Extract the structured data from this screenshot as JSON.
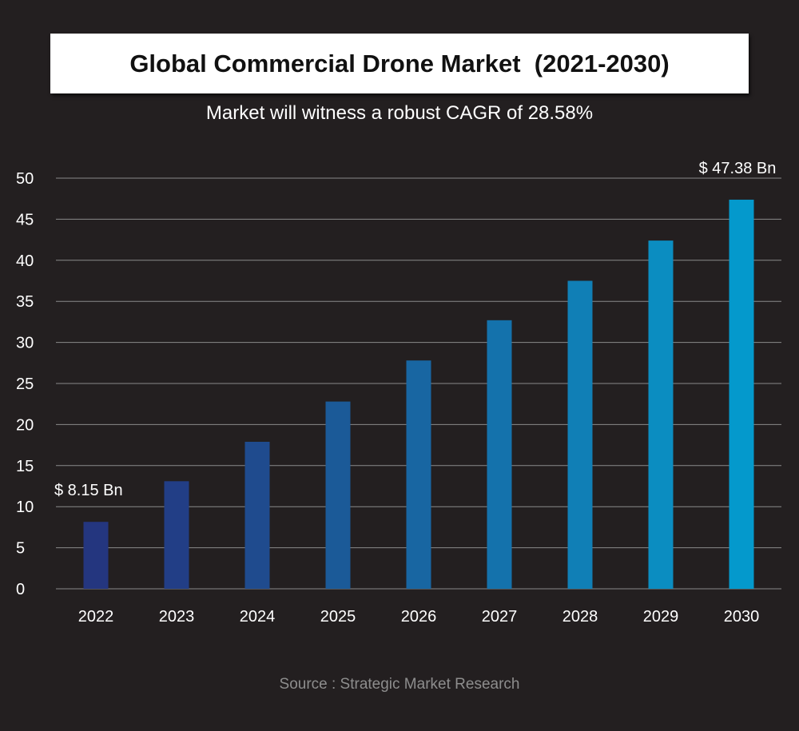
{
  "chart_data": {
    "type": "bar",
    "title": "Global Commercial Drone Market  (2021-2030)",
    "subtitle": "Market will witness a robust CAGR of 28.58%",
    "categories": [
      "2022",
      "2023",
      "2024",
      "2025",
      "2026",
      "2027",
      "2028",
      "2029",
      "2030"
    ],
    "values": [
      8.15,
      13.1,
      17.9,
      22.8,
      27.8,
      32.7,
      37.5,
      42.4,
      47.38
    ],
    "yticks": [
      0,
      5,
      10,
      15,
      20,
      25,
      30,
      35,
      40,
      45,
      50
    ],
    "ylim": [
      0,
      50
    ],
    "xlabel": "",
    "ylabel": "",
    "grid": true,
    "legend": "none",
    "data_labels": [
      {
        "category": "2022",
        "text": "$ 8.15 Bn"
      },
      {
        "category": "2030",
        "text": "$ 47.38 Bn"
      }
    ],
    "bar_colors": [
      "#24367f",
      "#223e86",
      "#1f4b8e",
      "#1b5a98",
      "#1866a2",
      "#1472ac",
      "#107fb6",
      "#0b8dc1",
      "#0499cc"
    ],
    "background": "#231f20",
    "gridline_color": "#8a8a8a",
    "source": "Source : Strategic Market Research"
  }
}
